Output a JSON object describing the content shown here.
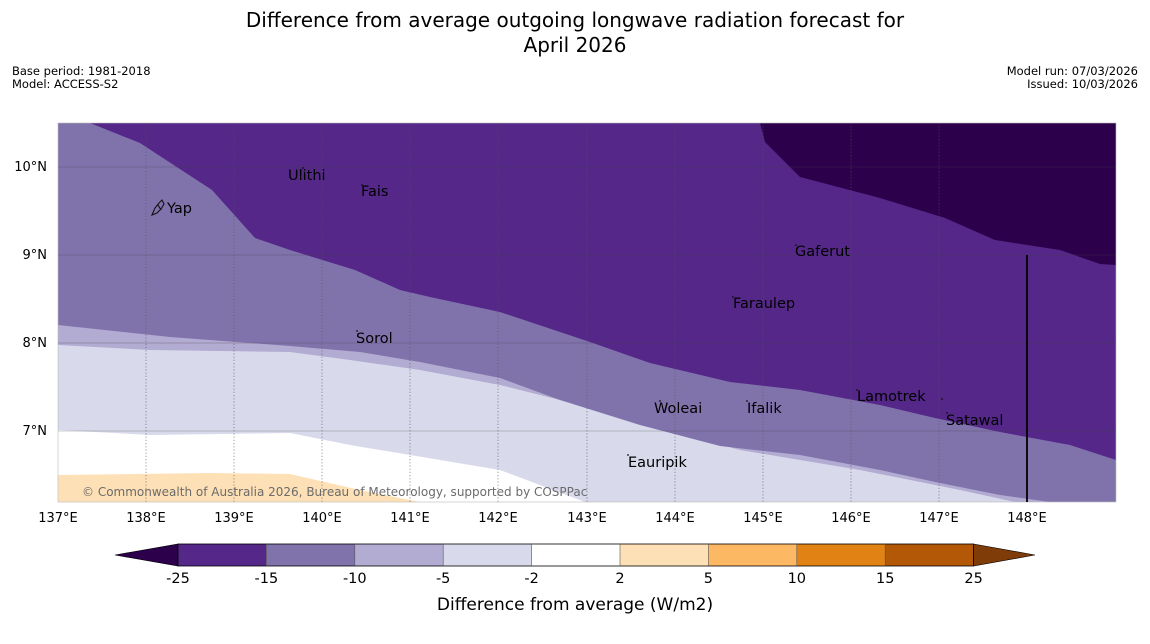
{
  "title": {
    "line1": "Difference from average outgoing longwave radiation forecast for",
    "line2": "April 2026"
  },
  "meta_left": {
    "base_period": "Base period: 1981-2018",
    "model": "Model: ACCESS-S2"
  },
  "meta_right": {
    "model_run": "Model run: 07/03/2026",
    "issued": "Issued: 10/03/2026"
  },
  "map": {
    "lon_labels": [
      "137°E",
      "138°E",
      "139°E",
      "140°E",
      "141°E",
      "142°E",
      "143°E",
      "144°E",
      "145°E",
      "146°E",
      "147°E",
      "148°E"
    ],
    "lat_labels": [
      "10°N",
      "9°N",
      "8°N",
      "7°N"
    ],
    "places": [
      "Yap",
      "Ulithi",
      "Fais",
      "Sorol",
      "Gaferut",
      "Faraulep",
      "Woleai",
      "Ifalik",
      "Eauripik",
      "Lamotrek",
      "Satawal"
    ],
    "copyright": "© Commonwealth of Australia 2026, Bureau of Meteorology, supported by COSPPac"
  },
  "legend": {
    "ticks": [
      "-25",
      "-15",
      "-10",
      "-5",
      "-2",
      "2",
      "5",
      "10",
      "15",
      "25"
    ],
    "label": "Difference from average (W/m2)",
    "colors": [
      "#2d004b",
      "#542788",
      "#8073ac",
      "#b2abd2",
      "#d8daeb",
      "#ffffff",
      "#fee0b6",
      "#fdb863",
      "#e08214",
      "#b35806",
      "#7f3b08"
    ]
  },
  "chart_data": {
    "type": "heatmap",
    "title": "Difference from average outgoing longwave radiation forecast for April 2026",
    "variable": "Difference from average (W/m2)",
    "levels": [
      -25,
      -15,
      -10,
      -5,
      -2,
      2,
      5,
      10,
      15,
      25
    ],
    "x_range_lon_E": [
      137,
      149
    ],
    "y_range_lat_N": [
      6.2,
      10.5
    ],
    "pattern": "strongly negative (< -25) in north-east, -25 to -15 across most of the north, grading to near-zero and slightly positive (2 to 5) in the south-west"
  }
}
